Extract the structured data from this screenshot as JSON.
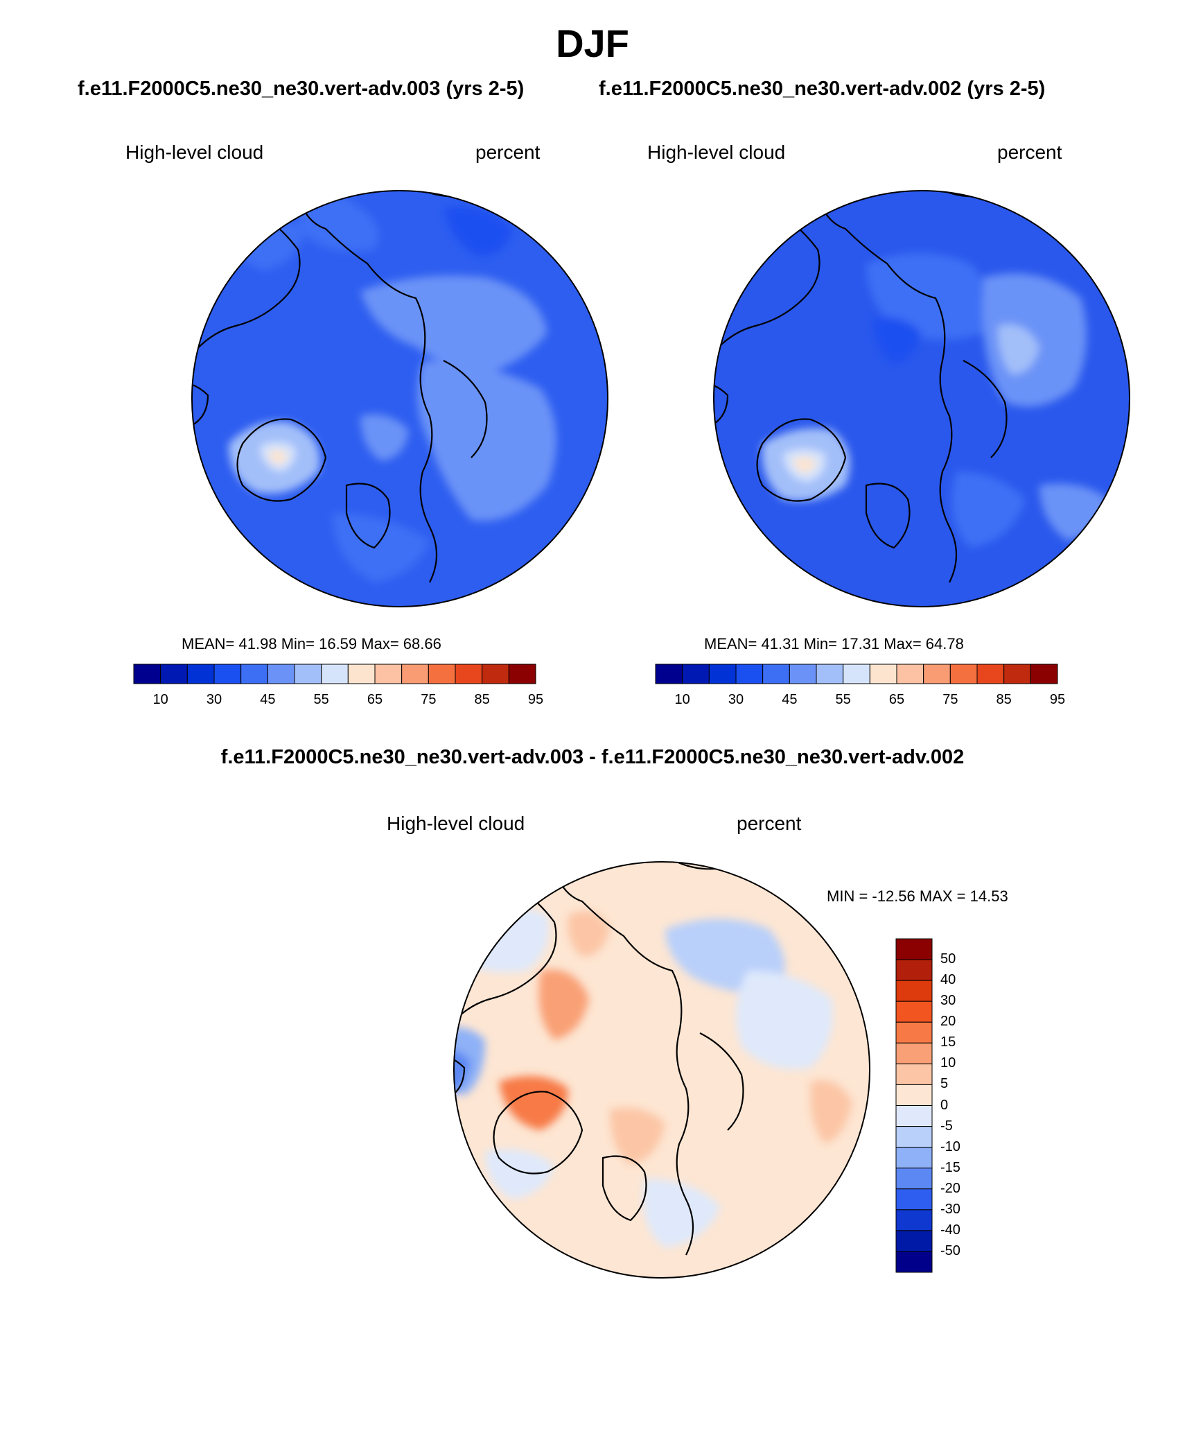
{
  "title": "DJF",
  "case_a_title": "f.e11.F2000C5.ne30_ne30.vert-adv.003 (yrs 2-5)",
  "case_b_title": "f.e11.F2000C5.ne30_ne30.vert-adv.002 (yrs 2-5)",
  "diff_title": "f.e11.F2000C5.ne30_ne30.vert-adv.003 - f.e11.F2000C5.ne30_ne30.vert-adv.002",
  "panels": {
    "a": {
      "variable": "High-level cloud",
      "units": "percent",
      "stats": "MEAN=  41.98  Min=  16.59  Max=  68.66"
    },
    "b": {
      "variable": "High-level cloud",
      "units": "percent",
      "stats": "MEAN=  41.31  Min=  17.31  Max=  64.78"
    },
    "diff": {
      "variable": "High-level cloud",
      "units": "percent",
      "stats": "MIN = -12.56 MAX =  14.53"
    }
  },
  "colorbar_main": {
    "labels": [
      "10",
      "30",
      "45",
      "55",
      "65",
      "75",
      "85",
      "95"
    ],
    "colors": [
      "#00008f",
      "#0019b3",
      "#0032d6",
      "#1a4ff0",
      "#3d6ff5",
      "#6b93f7",
      "#a3bff9",
      "#d6e4fb",
      "#fde4cf",
      "#fcc2a3",
      "#f99b73",
      "#f5703f",
      "#e8461c",
      "#c02a0e",
      "#8b0000"
    ]
  },
  "colorbar_diff": {
    "labels": [
      "50",
      "40",
      "30",
      "20",
      "15",
      "10",
      "5",
      "0",
      "-5",
      "-10",
      "-15",
      "-20",
      "-30",
      "-40",
      "-50"
    ],
    "colors": [
      "#8b0000",
      "#b21f0a",
      "#dd3b0d",
      "#f2551f",
      "#f77a46",
      "#f9a076",
      "#fcc6a6",
      "#fde6d3",
      "#dfe9fb",
      "#b9d0fa",
      "#8eb1f7",
      "#5c88f3",
      "#2e5ef0",
      "#0f38d0",
      "#001aa8",
      "#00008a"
    ]
  },
  "map_colors": {
    "a_base": "#2e5ef0",
    "b_base": "#2a58ec",
    "diff_base": "#fde6d3"
  }
}
